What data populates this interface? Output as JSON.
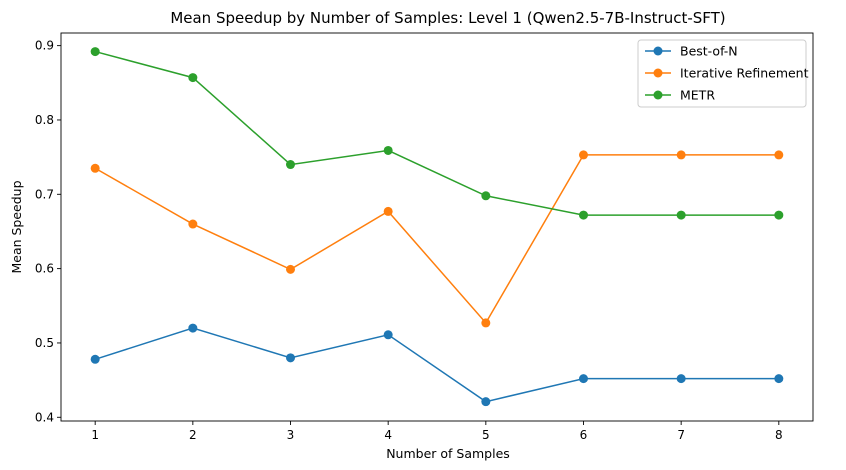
{
  "chart_data": {
    "type": "line",
    "title": "Mean Speedup by Number of Samples: Level 1 (Qwen2.5-7B-Instruct-SFT)",
    "xlabel": "Number of Samples",
    "ylabel": "Mean Speedup",
    "x": [
      1,
      2,
      3,
      4,
      5,
      6,
      7,
      8
    ],
    "xlim": [
      0.65,
      8.35
    ],
    "ylim": [
      0.395,
      0.917
    ],
    "xticks": [
      "1",
      "2",
      "3",
      "4",
      "5",
      "6",
      "7",
      "8"
    ],
    "yticks": [
      "0.4",
      "0.5",
      "0.6",
      "0.7",
      "0.8",
      "0.9"
    ],
    "grid": false,
    "legend_position": "top-right",
    "series": [
      {
        "name": "Best-of-N",
        "color": "#1f77b4",
        "values": [
          0.478,
          0.52,
          0.48,
          0.511,
          0.421,
          0.452,
          0.452,
          0.452
        ]
      },
      {
        "name": "Iterative Refinement",
        "color": "#ff7f0e",
        "values": [
          0.735,
          0.66,
          0.599,
          0.677,
          0.527,
          0.753,
          0.753,
          0.753
        ]
      },
      {
        "name": "METR",
        "color": "#2ca02c",
        "values": [
          0.892,
          0.857,
          0.74,
          0.759,
          0.698,
          0.672,
          0.672,
          0.672
        ]
      }
    ]
  }
}
